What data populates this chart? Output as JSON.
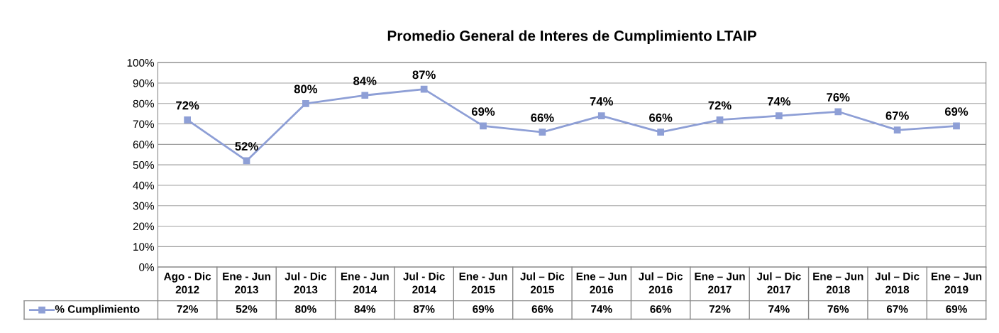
{
  "chart_data": {
    "type": "line",
    "title": "Promedio General de Interes de Cumplimiento LTAIP",
    "categories": [
      "Ago - Dic\n2012",
      "Ene - Jun\n2013",
      "Jul - Dic\n2013",
      "Ene - Jun\n2014",
      "Jul - Dic\n2014",
      "Ene - Jun\n2015",
      "Jul – Dic\n2015",
      "Ene – Jun\n2016",
      "Jul – Dic\n2016",
      "Ene – Jun\n2017",
      "Jul – Dic\n2017",
      "Ene – Jun\n2018",
      "Jul – Dic\n2018",
      "Ene – Jun\n2019"
    ],
    "series": [
      {
        "name": "% Cumplimiento",
        "color": "#8e9fd6",
        "values": [
          72,
          52,
          80,
          84,
          87,
          69,
          66,
          74,
          66,
          72,
          74,
          76,
          67,
          69
        ],
        "value_labels": [
          "72%",
          "52%",
          "80%",
          "84%",
          "87%",
          "69%",
          "66%",
          "74%",
          "66%",
          "72%",
          "74%",
          "76%",
          "67%",
          "69%"
        ]
      }
    ],
    "ylim": [
      0,
      100
    ],
    "yticks": [
      {
        "value": 0,
        "label": "0%"
      },
      {
        "value": 10,
        "label": "10%"
      },
      {
        "value": 20,
        "label": "20%"
      },
      {
        "value": 30,
        "label": "30%"
      },
      {
        "value": 40,
        "label": "40%"
      },
      {
        "value": 50,
        "label": "50%"
      },
      {
        "value": 60,
        "label": "60%"
      },
      {
        "value": 70,
        "label": "70%"
      },
      {
        "value": 80,
        "label": "80%"
      },
      {
        "value": 90,
        "label": "90%"
      },
      {
        "value": 100,
        "label": "100%"
      }
    ],
    "grid": "y",
    "marker": "square",
    "line_style": "solid",
    "legend": "bottom"
  }
}
